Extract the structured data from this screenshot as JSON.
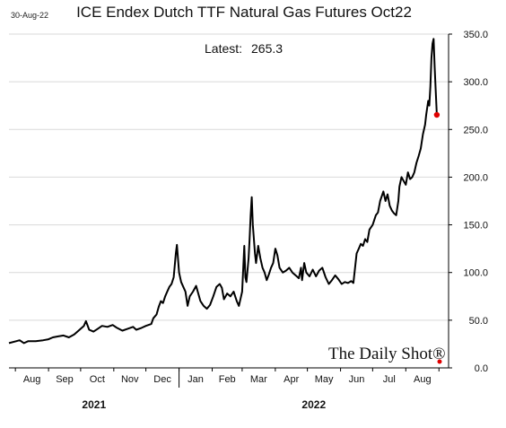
{
  "header": {
    "date": "30-Aug-22",
    "title": "ICE Endex Dutch TTF Natural Gas Futures Oct22",
    "latest_label": "Latest:",
    "latest_value": "265.3"
  },
  "watermark": "The Daily Shot®",
  "colors": {
    "line": "#000000",
    "latest_point": "#e00000",
    "grid": "#d9d9d9",
    "axis": "#000000"
  },
  "chart_data": {
    "type": "line",
    "title": "ICE Endex Dutch TTF Natural Gas Futures Oct22",
    "xlabel": "",
    "ylabel": "",
    "ylim": [
      0,
      350
    ],
    "yticks": [
      "0.0",
      "50.0",
      "100.0",
      "150.0",
      "200.0",
      "250.0",
      "300.0",
      "350.0"
    ],
    "y_axis_side": "right",
    "grid": "horizontal",
    "months": [
      "Aug",
      "Sep",
      "Oct",
      "Nov",
      "Dec",
      "Jan",
      "Feb",
      "Mar",
      "Apr",
      "May",
      "Jun",
      "Jul",
      "Aug"
    ],
    "years": [
      "2021",
      "2022"
    ],
    "x_start": "2021-07-26",
    "x_end": "2022-09-10",
    "latest": {
      "date": "2022-08-30",
      "value": 265.3
    },
    "series": [
      {
        "name": "",
        "points": [
          [
            "2021-07-26",
            26
          ],
          [
            "2021-08-02",
            28
          ],
          [
            "2021-08-05",
            29
          ],
          [
            "2021-08-09",
            26
          ],
          [
            "2021-08-13",
            28
          ],
          [
            "2021-08-20",
            28
          ],
          [
            "2021-08-27",
            29
          ],
          [
            "2021-09-01",
            30
          ],
          [
            "2021-09-05",
            32
          ],
          [
            "2021-09-10",
            33
          ],
          [
            "2021-09-15",
            34
          ],
          [
            "2021-09-20",
            32
          ],
          [
            "2021-09-25",
            35
          ],
          [
            "2021-09-30",
            40
          ],
          [
            "2021-10-04",
            44
          ],
          [
            "2021-10-06",
            49
          ],
          [
            "2021-10-09",
            40
          ],
          [
            "2021-10-13",
            38
          ],
          [
            "2021-10-17",
            41
          ],
          [
            "2021-10-21",
            44
          ],
          [
            "2021-10-26",
            43
          ],
          [
            "2021-10-31",
            45
          ],
          [
            "2021-11-04",
            42
          ],
          [
            "2021-11-09",
            39
          ],
          [
            "2021-11-14",
            41
          ],
          [
            "2021-11-19",
            43
          ],
          [
            "2021-11-22",
            40
          ],
          [
            "2021-11-27",
            42
          ],
          [
            "2021-12-01",
            44
          ],
          [
            "2021-12-06",
            46
          ],
          [
            "2021-12-08",
            52
          ],
          [
            "2021-12-11",
            56
          ],
          [
            "2021-12-13",
            64
          ],
          [
            "2021-12-15",
            70
          ],
          [
            "2021-12-17",
            68
          ],
          [
            "2021-12-19",
            75
          ],
          [
            "2021-12-21",
            80
          ],
          [
            "2021-12-23",
            85
          ],
          [
            "2021-12-25",
            88
          ],
          [
            "2021-12-27",
            95
          ],
          [
            "2021-12-29",
            120
          ],
          [
            "2021-12-30",
            129
          ],
          [
            "2022-01-01",
            100
          ],
          [
            "2022-01-03",
            90
          ],
          [
            "2022-01-05",
            85
          ],
          [
            "2022-01-07",
            80
          ],
          [
            "2022-01-09",
            65
          ],
          [
            "2022-01-11",
            75
          ],
          [
            "2022-01-14",
            80
          ],
          [
            "2022-01-17",
            86
          ],
          [
            "2022-01-19",
            78
          ],
          [
            "2022-01-21",
            70
          ],
          [
            "2022-01-24",
            65
          ],
          [
            "2022-01-27",
            62
          ],
          [
            "2022-01-30",
            66
          ],
          [
            "2022-02-02",
            75
          ],
          [
            "2022-02-05",
            85
          ],
          [
            "2022-02-08",
            88
          ],
          [
            "2022-02-10",
            84
          ],
          [
            "2022-02-12",
            72
          ],
          [
            "2022-02-15",
            78
          ],
          [
            "2022-02-18",
            75
          ],
          [
            "2022-02-21",
            80
          ],
          [
            "2022-02-24",
            70
          ],
          [
            "2022-02-26",
            65
          ],
          [
            "2022-02-28",
            75
          ],
          [
            "2022-03-01",
            80
          ],
          [
            "2022-03-03",
            128
          ],
          [
            "2022-03-04",
            95
          ],
          [
            "2022-03-05",
            90
          ],
          [
            "2022-03-07",
            115
          ],
          [
            "2022-03-08",
            135
          ],
          [
            "2022-03-09",
            160
          ],
          [
            "2022-03-10",
            179
          ],
          [
            "2022-03-11",
            150
          ],
          [
            "2022-03-13",
            120
          ],
          [
            "2022-03-14",
            110
          ],
          [
            "2022-03-16",
            128
          ],
          [
            "2022-03-18",
            115
          ],
          [
            "2022-03-20",
            105
          ],
          [
            "2022-03-22",
            100
          ],
          [
            "2022-03-24",
            92
          ],
          [
            "2022-03-26",
            98
          ],
          [
            "2022-03-28",
            105
          ],
          [
            "2022-03-30",
            110
          ],
          [
            "2022-04-01",
            125
          ],
          [
            "2022-04-03",
            118
          ],
          [
            "2022-04-05",
            105
          ],
          [
            "2022-04-08",
            100
          ],
          [
            "2022-04-11",
            102
          ],
          [
            "2022-04-14",
            105
          ],
          [
            "2022-04-17",
            100
          ],
          [
            "2022-04-20",
            97
          ],
          [
            "2022-04-23",
            94
          ],
          [
            "2022-04-25",
            105
          ],
          [
            "2022-04-26",
            92
          ],
          [
            "2022-04-28",
            110
          ],
          [
            "2022-04-30",
            100
          ],
          [
            "2022-05-03",
            96
          ],
          [
            "2022-05-06",
            103
          ],
          [
            "2022-05-09",
            96
          ],
          [
            "2022-05-12",
            102
          ],
          [
            "2022-05-15",
            105
          ],
          [
            "2022-05-18",
            95
          ],
          [
            "2022-05-21",
            88
          ],
          [
            "2022-05-24",
            92
          ],
          [
            "2022-05-27",
            97
          ],
          [
            "2022-05-30",
            93
          ],
          [
            "2022-06-02",
            88
          ],
          [
            "2022-06-05",
            90
          ],
          [
            "2022-06-08",
            89
          ],
          [
            "2022-06-11",
            91
          ],
          [
            "2022-06-13",
            89
          ],
          [
            "2022-06-16",
            120
          ],
          [
            "2022-06-18",
            125
          ],
          [
            "2022-06-20",
            130
          ],
          [
            "2022-06-22",
            128
          ],
          [
            "2022-06-24",
            135
          ],
          [
            "2022-06-26",
            132
          ],
          [
            "2022-06-28",
            145
          ],
          [
            "2022-07-01",
            150
          ],
          [
            "2022-07-04",
            160
          ],
          [
            "2022-07-06",
            163
          ],
          [
            "2022-07-08",
            175
          ],
          [
            "2022-07-11",
            185
          ],
          [
            "2022-07-13",
            175
          ],
          [
            "2022-07-15",
            182
          ],
          [
            "2022-07-17",
            170
          ],
          [
            "2022-07-19",
            165
          ],
          [
            "2022-07-21",
            162
          ],
          [
            "2022-07-23",
            160
          ],
          [
            "2022-07-25",
            175
          ],
          [
            "2022-07-26",
            190
          ],
          [
            "2022-07-28",
            200
          ],
          [
            "2022-07-30",
            196
          ],
          [
            "2022-08-01",
            192
          ],
          [
            "2022-08-03",
            205
          ],
          [
            "2022-08-05",
            198
          ],
          [
            "2022-08-07",
            200
          ],
          [
            "2022-08-09",
            205
          ],
          [
            "2022-08-11",
            215
          ],
          [
            "2022-08-13",
            222
          ],
          [
            "2022-08-15",
            230
          ],
          [
            "2022-08-17",
            245
          ],
          [
            "2022-08-19",
            255
          ],
          [
            "2022-08-20",
            265
          ],
          [
            "2022-08-22",
            280
          ],
          [
            "2022-08-23",
            275
          ],
          [
            "2022-08-24",
            295
          ],
          [
            "2022-08-25",
            325
          ],
          [
            "2022-08-26",
            340
          ],
          [
            "2022-08-27",
            345
          ],
          [
            "2022-08-28",
            315
          ],
          [
            "2022-08-29",
            290
          ],
          [
            "2022-08-30",
            265.3
          ]
        ]
      }
    ]
  }
}
